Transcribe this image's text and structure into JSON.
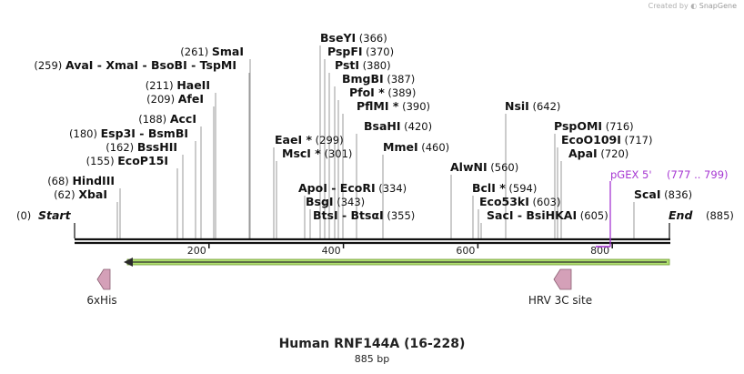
{
  "credit": {
    "prefix": "Created by",
    "brand": "SnapGene"
  },
  "sequence": {
    "name": "Human RNF144A (16-228)",
    "length_label": "885 bp",
    "length": 885
  },
  "ends": {
    "start_label": "Start",
    "start_pos": "(0)",
    "end_label": "End",
    "end_pos": "(885)"
  },
  "ticks": [
    {
      "value": 200,
      "label": "200"
    },
    {
      "value": 400,
      "label": "400"
    },
    {
      "value": 600,
      "label": "600"
    },
    {
      "value": 800,
      "label": "800"
    }
  ],
  "sites": [
    {
      "bp": 259,
      "pos": "(259)",
      "names": [
        "AvaI",
        "XmaI",
        "BsoBI",
        "TspMI"
      ]
    },
    {
      "bp": 261,
      "pos": "(261)",
      "names": [
        "SmaI"
      ]
    },
    {
      "bp": 211,
      "pos": "(211)",
      "names": [
        "HaeII"
      ]
    },
    {
      "bp": 209,
      "pos": "(209)",
      "names": [
        "AfeI"
      ]
    },
    {
      "bp": 188,
      "pos": "(188)",
      "names": [
        "AccI"
      ]
    },
    {
      "bp": 180,
      "pos": "(180)",
      "names": [
        "Esp3I",
        "BsmBI"
      ]
    },
    {
      "bp": 162,
      "pos": "(162)",
      "names": [
        "BssHII"
      ]
    },
    {
      "bp": 155,
      "pos": "(155)",
      "names": [
        "EcoP15I"
      ]
    },
    {
      "bp": 68,
      "pos": "(68)",
      "names": [
        "HindIII"
      ]
    },
    {
      "bp": 62,
      "pos": "(62)",
      "names": [
        "XbaI"
      ]
    },
    {
      "bp": 366,
      "pos": "(366)",
      "names": [
        "BseYI"
      ]
    },
    {
      "bp": 370,
      "pos": "(370)",
      "names": [
        "PspFI"
      ]
    },
    {
      "bp": 380,
      "pos": "(380)",
      "names": [
        "PstI"
      ]
    },
    {
      "bp": 387,
      "pos": "(387)",
      "names": [
        "BmgBI"
      ]
    },
    {
      "bp": 389,
      "pos": "(389)",
      "names": [
        "PfoI"
      ],
      "star": "*"
    },
    {
      "bp": 390,
      "pos": "(390)",
      "names": [
        "PflMI"
      ],
      "star": "*"
    },
    {
      "bp": 420,
      "pos": "(420)",
      "names": [
        "BsaHI"
      ]
    },
    {
      "bp": 299,
      "pos": "(299)",
      "names": [
        "EaeI"
      ],
      "star": "*"
    },
    {
      "bp": 301,
      "pos": "(301)",
      "names": [
        "MscI"
      ],
      "star": "*"
    },
    {
      "bp": 460,
      "pos": "(460)",
      "names": [
        "MmeI"
      ]
    },
    {
      "bp": 334,
      "pos": "(334)",
      "names": [
        "ApoI",
        "EcoRI"
      ]
    },
    {
      "bp": 343,
      "pos": "(343)",
      "names": [
        "BsgI"
      ]
    },
    {
      "bp": 355,
      "pos": "(355)",
      "names": [
        "BtsI",
        "BtsαI"
      ]
    },
    {
      "bp": 642,
      "pos": "(642)",
      "names": [
        "NsiI"
      ]
    },
    {
      "bp": 716,
      "pos": "(716)",
      "names": [
        "PspOMI"
      ]
    },
    {
      "bp": 717,
      "pos": "(717)",
      "names": [
        "EcoO109I"
      ]
    },
    {
      "bp": 720,
      "pos": "(720)",
      "names": [
        "ApaI"
      ]
    },
    {
      "bp": 560,
      "pos": "(560)",
      "names": [
        "AlwNI"
      ]
    },
    {
      "bp": 594,
      "pos": "(594)",
      "names": [
        "BclI"
      ],
      "star": "*"
    },
    {
      "bp": 603,
      "pos": "(603)",
      "names": [
        "Eco53kI"
      ]
    },
    {
      "bp": 605,
      "pos": "(605)",
      "names": [
        "SacI",
        "BsiHKAI"
      ]
    },
    {
      "bp": 836,
      "pos": "(836)",
      "names": [
        "ScaI"
      ]
    }
  ],
  "primer": {
    "name": "pGEX 5'",
    "range": "(777 .. 799)",
    "color": "#a637d2"
  },
  "features": [
    {
      "name": "6xHis",
      "type": "tag",
      "color": "#d4a0b8"
    },
    {
      "name": "HRV 3C site",
      "type": "cleavage site",
      "color": "#d4a0b8"
    }
  ],
  "orf": {
    "color": "#b0e070",
    "direction": "reverse"
  },
  "colors": {
    "backbone": "#111111",
    "primer": "#a637d2",
    "feature": "#d4a0b8",
    "orf": "#b0e070"
  }
}
